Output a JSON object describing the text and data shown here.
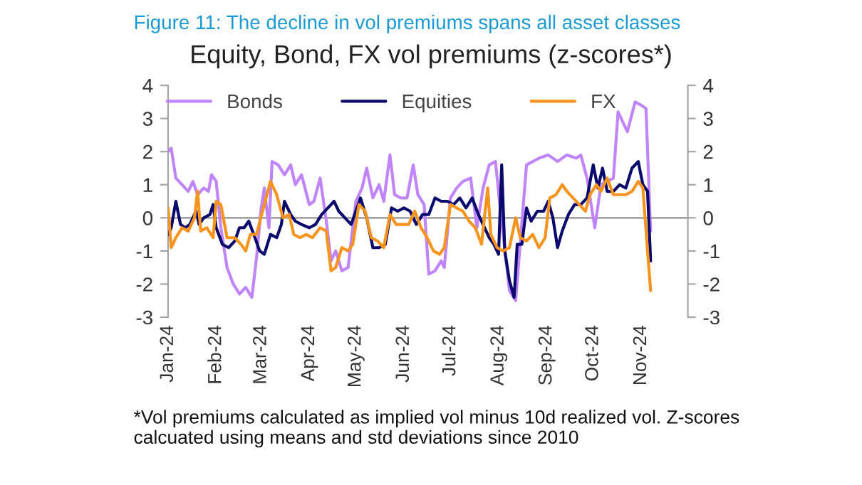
{
  "chart_data": {
    "type": "line",
    "title": "Equity, Bond, FX vol premiums (z-scores*)",
    "subtitle": "Figure 11: The decline in vol premiums spans all asset classes",
    "annotations": [
      "*Vol premiums calculated as implied vol minus 10d realized vol. Z-scores calcuated using means and std deviations since 2010"
    ],
    "xlim": [
      "2024-01-01",
      "2024-12-01"
    ],
    "xticks": [
      {
        "value": "2024-01-01",
        "label": "Jan-24"
      },
      {
        "value": "2024-02-01",
        "label": "Feb-24"
      },
      {
        "value": "2024-03-01",
        "label": "Mar-24"
      },
      {
        "value": "2024-04-01",
        "label": "Apr-24"
      },
      {
        "value": "2024-05-01",
        "label": "May-24"
      },
      {
        "value": "2024-06-01",
        "label": "Jun-24"
      },
      {
        "value": "2024-07-01",
        "label": "Jul-24"
      },
      {
        "value": "2024-08-01",
        "label": "Aug-24"
      },
      {
        "value": "2024-09-01",
        "label": "Sep-24"
      },
      {
        "value": "2024-10-01",
        "label": "Oct-24"
      },
      {
        "value": "2024-11-01",
        "label": "Nov-24"
      }
    ],
    "ylim": [
      -3,
      4
    ],
    "yticks": [
      -3,
      -2,
      -1,
      0,
      1,
      2,
      3,
      4
    ],
    "y2lim": [
      -3,
      4
    ],
    "y2ticks": [
      -3,
      -2,
      -1,
      0,
      1,
      2,
      3,
      4
    ],
    "ref_lines": [
      {
        "axis": "y",
        "value": 0,
        "color": "#a6a6a6"
      }
    ],
    "grid": false,
    "legend": "top",
    "marker": "none",
    "line_style": "solid",
    "series": [
      {
        "name": "Bonds",
        "color": "#c084fc",
        "x": [
          "2024-01-01",
          "2024-01-03",
          "2024-01-06",
          "2024-01-10",
          "2024-01-14",
          "2024-01-17",
          "2024-01-20",
          "2024-01-24",
          "2024-01-27",
          "2024-01-29",
          "2024-02-01",
          "2024-02-04",
          "2024-02-08",
          "2024-02-12",
          "2024-02-16",
          "2024-02-20",
          "2024-02-24",
          "2024-02-27",
          "2024-03-01",
          "2024-03-03",
          "2024-03-06",
          "2024-03-08",
          "2024-03-12",
          "2024-03-16",
          "2024-03-20",
          "2024-03-23",
          "2024-03-27",
          "2024-04-01",
          "2024-04-04",
          "2024-04-08",
          "2024-04-12",
          "2024-04-15",
          "2024-04-18",
          "2024-04-22",
          "2024-04-26",
          "2024-05-01",
          "2024-05-05",
          "2024-05-08",
          "2024-05-12",
          "2024-05-16",
          "2024-05-19",
          "2024-05-23",
          "2024-05-26",
          "2024-05-30",
          "2024-06-03",
          "2024-06-07",
          "2024-06-10",
          "2024-06-14",
          "2024-06-17",
          "2024-06-21",
          "2024-06-25",
          "2024-06-27",
          "2024-07-01",
          "2024-07-05",
          "2024-07-09",
          "2024-07-14",
          "2024-07-18",
          "2024-07-22",
          "2024-07-26",
          "2024-07-30",
          "2024-08-02",
          "2024-08-08",
          "2024-08-12",
          "2024-08-19",
          "2024-08-27",
          "2024-09-02",
          "2024-09-08",
          "2024-09-14",
          "2024-09-20",
          "2024-09-23",
          "2024-09-27",
          "2024-10-02",
          "2024-10-06",
          "2024-10-14",
          "2024-10-17",
          "2024-10-23",
          "2024-10-28",
          "2024-11-01",
          "2024-11-04",
          "2024-11-07"
        ],
        "values": [
          2.0,
          2.1,
          1.2,
          1.0,
          0.8,
          1.1,
          0.7,
          0.9,
          0.8,
          1.3,
          1.1,
          -0.3,
          -1.5,
          -2.0,
          -2.3,
          -2.1,
          -2.4,
          -1.2,
          0.3,
          0.9,
          -0.3,
          1.7,
          1.6,
          1.3,
          1.6,
          1.0,
          1.3,
          0.4,
          0.5,
          1.2,
          -0.1,
          -1.3,
          -1.0,
          -1.6,
          -1.5,
          0.5,
          0.9,
          1.5,
          0.6,
          1.0,
          0.5,
          1.9,
          0.7,
          0.6,
          0.6,
          1.6,
          0.7,
          0.4,
          -1.7,
          -1.6,
          -1.3,
          -1.5,
          0.6,
          0.9,
          1.1,
          1.2,
          -0.3,
          0.9,
          1.6,
          1.7,
          0.3,
          -2.2,
          -2.5,
          1.6,
          1.8,
          1.9,
          1.7,
          1.9,
          1.8,
          1.9,
          1.2,
          -0.3,
          1.0,
          1.2,
          3.2,
          2.6,
          3.5,
          3.4,
          3.3,
          -0.4
        ]
      },
      {
        "name": "Equities",
        "color": "#0a0a6e",
        "x": [
          "2024-01-01",
          "2024-01-03",
          "2024-01-06",
          "2024-01-09",
          "2024-01-12",
          "2024-01-15",
          "2024-01-19",
          "2024-01-21",
          "2024-01-24",
          "2024-01-28",
          "2024-01-30",
          "2024-02-01",
          "2024-02-05",
          "2024-02-09",
          "2024-02-13",
          "2024-02-16",
          "2024-02-19",
          "2024-02-22",
          "2024-02-26",
          "2024-02-29",
          "2024-03-03",
          "2024-03-07",
          "2024-03-11",
          "2024-03-14",
          "2024-03-16",
          "2024-03-20",
          "2024-03-23",
          "2024-03-27",
          "2024-04-01",
          "2024-04-05",
          "2024-04-09",
          "2024-04-13",
          "2024-04-17",
          "2024-04-20",
          "2024-04-24",
          "2024-04-28",
          "2024-05-01",
          "2024-05-04",
          "2024-05-08",
          "2024-05-12",
          "2024-05-16",
          "2024-05-20",
          "2024-05-24",
          "2024-05-28",
          "2024-06-01",
          "2024-06-05",
          "2024-06-09",
          "2024-06-13",
          "2024-06-17",
          "2024-06-21",
          "2024-06-25",
          "2024-06-29",
          "2024-07-03",
          "2024-07-07",
          "2024-07-11",
          "2024-07-15",
          "2024-07-19",
          "2024-07-23",
          "2024-07-26",
          "2024-07-29",
          "2024-08-01",
          "2024-08-03",
          "2024-08-05",
          "2024-08-08",
          "2024-08-11",
          "2024-08-13",
          "2024-08-16",
          "2024-08-19",
          "2024-08-22",
          "2024-08-26",
          "2024-08-30",
          "2024-09-02",
          "2024-09-05",
          "2024-09-08",
          "2024-09-11",
          "2024-09-15",
          "2024-09-19",
          "2024-09-23",
          "2024-09-27",
          "2024-10-01",
          "2024-10-04",
          "2024-10-07",
          "2024-10-10",
          "2024-10-14",
          "2024-10-18",
          "2024-10-22",
          "2024-10-26",
          "2024-10-30",
          "2024-11-02",
          "2024-11-05",
          "2024-11-07"
        ],
        "values": [
          -0.5,
          -0.3,
          0.5,
          -0.2,
          -0.3,
          -0.2,
          0.2,
          -0.2,
          0.0,
          0.1,
          0.4,
          -0.3,
          -0.8,
          -0.9,
          -0.7,
          -0.3,
          -0.3,
          -0.1,
          -0.6,
          -1.0,
          -1.1,
          -0.5,
          -0.6,
          -0.2,
          0.5,
          0.1,
          -0.1,
          -0.2,
          -0.3,
          -0.2,
          0.1,
          0.3,
          0.5,
          0.2,
          0.0,
          -0.2,
          0.2,
          0.6,
          0.0,
          -0.9,
          -0.9,
          -0.8,
          0.3,
          0.2,
          0.3,
          0.2,
          -0.2,
          0.1,
          0.1,
          0.6,
          0.5,
          0.5,
          0.4,
          0.6,
          0.3,
          0.6,
          0.1,
          -0.3,
          -0.6,
          -0.8,
          -1.1,
          1.6,
          -1.0,
          -1.9,
          -2.4,
          -0.8,
          -0.8,
          0.3,
          -0.1,
          0.2,
          0.2,
          0.5,
          0.0,
          -0.9,
          -0.4,
          0.1,
          0.4,
          0.4,
          0.6,
          1.6,
          0.9,
          1.5,
          0.8,
          0.8,
          1.0,
          0.9,
          1.5,
          1.7,
          1.0,
          0.8,
          -1.3
        ]
      },
      {
        "name": "FX",
        "color": "#f7941d",
        "x": [
          "2024-01-01",
          "2024-01-03",
          "2024-01-06",
          "2024-01-10",
          "2024-01-14",
          "2024-01-18",
          "2024-01-20",
          "2024-01-22",
          "2024-01-26",
          "2024-01-30",
          "2024-02-01",
          "2024-02-04",
          "2024-02-08",
          "2024-02-13",
          "2024-02-17",
          "2024-02-20",
          "2024-02-23",
          "2024-02-27",
          "2024-03-03",
          "2024-03-07",
          "2024-03-11",
          "2024-03-15",
          "2024-03-19",
          "2024-03-22",
          "2024-03-26",
          "2024-03-30",
          "2024-04-03",
          "2024-04-08",
          "2024-04-12",
          "2024-04-15",
          "2024-04-18",
          "2024-04-22",
          "2024-04-26",
          "2024-04-29",
          "2024-05-03",
          "2024-05-07",
          "2024-05-11",
          "2024-05-15",
          "2024-05-19",
          "2024-05-23",
          "2024-05-27",
          "2024-05-31",
          "2024-06-04",
          "2024-06-08",
          "2024-06-12",
          "2024-06-16",
          "2024-06-20",
          "2024-06-24",
          "2024-06-27",
          "2024-07-01",
          "2024-07-05",
          "2024-07-09",
          "2024-07-13",
          "2024-07-17",
          "2024-07-21",
          "2024-07-25",
          "2024-07-27",
          "2024-07-31",
          "2024-08-04",
          "2024-08-08",
          "2024-08-12",
          "2024-08-15",
          "2024-08-19",
          "2024-08-23",
          "2024-08-27",
          "2024-08-31",
          "2024-09-03",
          "2024-09-07",
          "2024-09-11",
          "2024-09-14",
          "2024-09-18",
          "2024-09-22",
          "2024-09-26",
          "2024-09-29",
          "2024-10-03",
          "2024-10-06",
          "2024-10-10",
          "2024-10-14",
          "2024-10-18",
          "2024-10-22",
          "2024-10-26",
          "2024-10-30",
          "2024-11-02",
          "2024-11-05",
          "2024-11-07"
        ],
        "values": [
          0.3,
          -0.9,
          -0.6,
          -0.3,
          -0.4,
          0.0,
          0.8,
          -0.4,
          -0.3,
          -0.6,
          0.5,
          0.4,
          -0.6,
          -0.6,
          -0.8,
          -1.0,
          -0.5,
          -0.5,
          0.4,
          1.1,
          0.7,
          0.0,
          0.1,
          -0.5,
          -0.6,
          -0.5,
          -0.6,
          -0.3,
          -0.4,
          -1.6,
          -1.5,
          -0.9,
          -1.0,
          -0.8,
          0.4,
          0.2,
          -0.6,
          -0.7,
          -0.9,
          0.1,
          -0.2,
          -0.2,
          -0.2,
          0.2,
          -0.3,
          -0.6,
          -1.0,
          -1.1,
          -0.9,
          0.4,
          0.3,
          0.2,
          -0.1,
          -0.3,
          -0.8,
          0.9,
          -0.5,
          -0.9,
          -1.0,
          -0.9,
          0.0,
          -0.6,
          -0.7,
          -0.5,
          -0.9,
          -0.6,
          0.6,
          0.7,
          1.0,
          0.8,
          0.6,
          0.4,
          0.2,
          0.7,
          1.0,
          0.8,
          1.2,
          0.7,
          0.7,
          0.7,
          0.8,
          1.1,
          0.9,
          -1.0,
          -2.2
        ]
      }
    ]
  }
}
